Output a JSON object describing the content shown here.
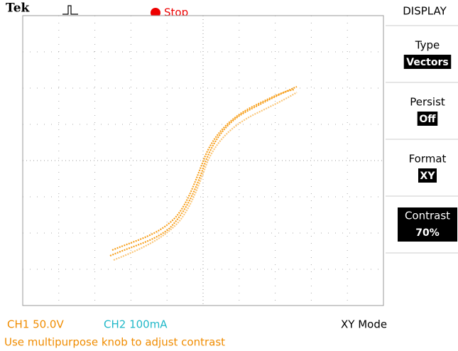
{
  "header": {
    "brand": "Tek",
    "trigger_status": "Stop"
  },
  "menu": {
    "title": "DISPLAY",
    "items": [
      {
        "label": "Type",
        "value": "Vectors"
      },
      {
        "label": "Persist",
        "value": "Off"
      },
      {
        "label": "Format",
        "value": "XY"
      },
      {
        "label": "Contrast",
        "value": "70%"
      }
    ]
  },
  "status": {
    "ch1": "CH1  50.0V",
    "ch2": "CH2  100mA",
    "mode": "XY Mode"
  },
  "message": "Use multipurpose knob to adjust contrast"
}
